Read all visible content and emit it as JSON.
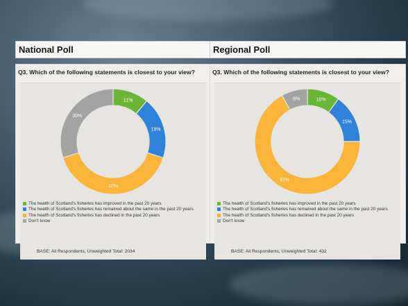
{
  "colors": {
    "improved": "#6ab535",
    "same": "#2e82d9",
    "declined": "#fbb43a",
    "dont_know": "#a3a3a3",
    "label_text": "#ffffff"
  },
  "panels": [
    {
      "heading": "National Poll",
      "question": "Q3. Which of the following statements is closest to your view?",
      "legend": [
        "The health of Scotland's fisheries has improved in the past 20 years",
        "The health of Scotland's fisheries has remained about the same in the past 20 years",
        "The health of Scotland's fisheries has declined in the past 20 years",
        "Don't know"
      ],
      "base": "BASE: All Respondents, Unweighted Total: 2034"
    },
    {
      "heading": "Regional Poll",
      "question": "Q3. Which of the following statements is closest to your view?",
      "legend": [
        "The health of Scotland's fisheries has improved in the past 20 years",
        "The health of Scotland's fisheries has remained about the same in the past 20 years",
        "The health of Scotland's fisheries has declined in the past 20 years",
        "Don't know"
      ],
      "base": "BASE: All Respondents, Unweighted Total: 432"
    }
  ],
  "chart_data": [
    {
      "type": "pie",
      "variant": "donut",
      "title": "Q3. Which of the following statements is closest to your view?",
      "categories": [
        "The health of Scotland's fisheries has improved in the past 20 years",
        "The health of Scotland's fisheries has remained about the same in the past 20 years",
        "The health of Scotland's fisheries has declined in the past 20 years",
        "Don't know"
      ],
      "values": [
        11,
        19,
        40,
        30
      ],
      "labels": [
        "11%",
        "19%",
        "40%",
        "30%"
      ],
      "legend_position": "bottom-left"
    },
    {
      "type": "pie",
      "variant": "donut",
      "title": "Q3. Which of the following statements is closest to your view?",
      "categories": [
        "The health of Scotland's fisheries has improved in the past 20 years",
        "The health of Scotland's fisheries has remained about the same in the past 20 years",
        "The health of Scotland's fisheries has declined in the past 20 years",
        "Don't know"
      ],
      "values": [
        10,
        15,
        67,
        8
      ],
      "labels": [
        "10%",
        "15%",
        "67%",
        "8%"
      ],
      "legend_position": "bottom-left"
    }
  ]
}
